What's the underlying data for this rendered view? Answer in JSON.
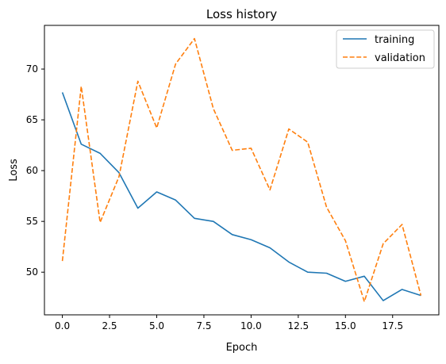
{
  "chart_data": {
    "type": "line",
    "title": "Loss history",
    "xlabel": "Epoch",
    "ylabel": "Loss",
    "xlim": [
      -0.95,
      19.95
    ],
    "ylim": [
      45.8,
      74.3
    ],
    "xticks": [
      0.0,
      2.5,
      5.0,
      7.5,
      10.0,
      12.5,
      15.0,
      17.5
    ],
    "xtick_labels": [
      "0.0",
      "2.5",
      "5.0",
      "7.5",
      "10.0",
      "12.5",
      "15.0",
      "17.5"
    ],
    "yticks": [
      50,
      55,
      60,
      65,
      70
    ],
    "ytick_labels": [
      "50",
      "55",
      "60",
      "65",
      "70"
    ],
    "grid": false,
    "legend_position": "top-right",
    "x": [
      0,
      1,
      2,
      3,
      4,
      5,
      6,
      7,
      8,
      9,
      10,
      11,
      12,
      13,
      14,
      15,
      16,
      17,
      18,
      19
    ],
    "series": [
      {
        "name": "training",
        "color": "#1f77b4",
        "style": "solid",
        "values": [
          67.7,
          62.6,
          61.7,
          59.8,
          56.3,
          57.9,
          57.1,
          55.3,
          55.0,
          53.7,
          53.2,
          52.4,
          51.0,
          50.0,
          49.9,
          49.1,
          49.6,
          47.2,
          48.3,
          47.7
        ]
      },
      {
        "name": "validation",
        "color": "#ff7f0e",
        "style": "dashed",
        "values": [
          51.1,
          68.3,
          54.9,
          59.4,
          68.8,
          64.2,
          70.5,
          73.0,
          66.1,
          62.0,
          62.2,
          58.1,
          64.1,
          62.8,
          56.4,
          53.1,
          47.1,
          52.8,
          54.7,
          47.7
        ]
      }
    ]
  }
}
